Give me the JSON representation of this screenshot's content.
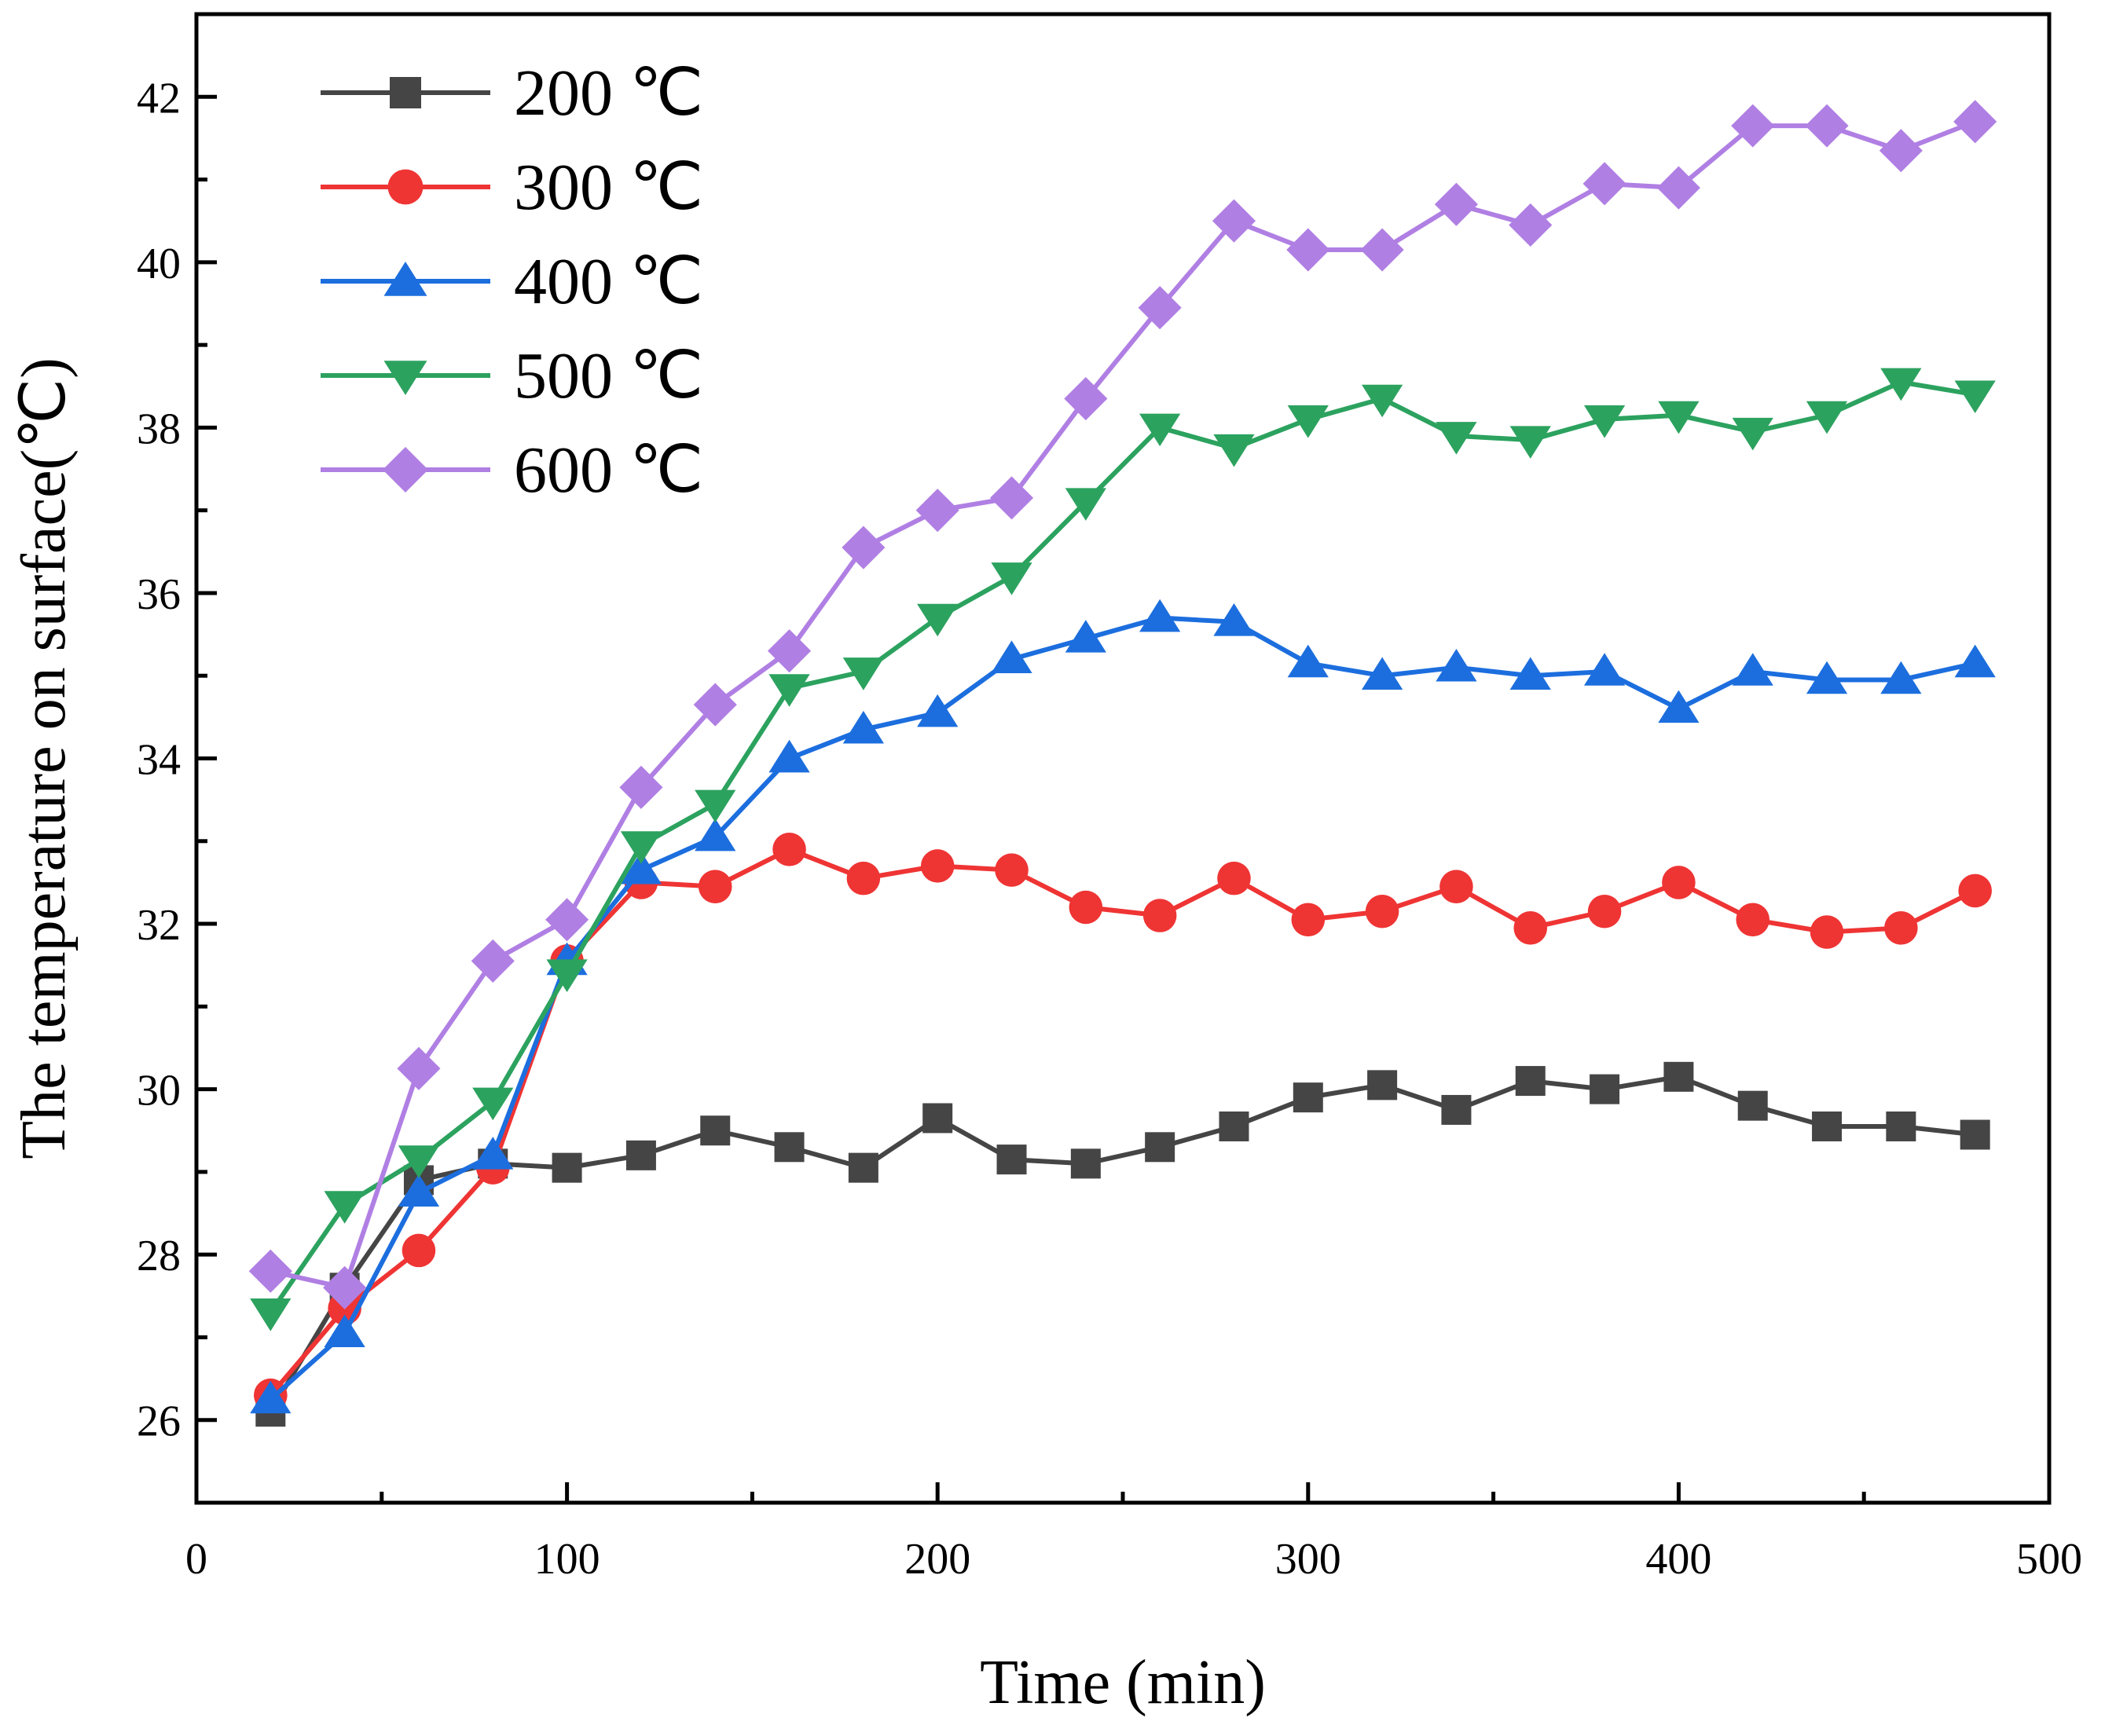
{
  "chart_data": {
    "type": "line",
    "title": "",
    "xlabel": "Time (min)",
    "ylabel": "The temperature on surface(℃)",
    "xlim": [
      0,
      500
    ],
    "ylim": [
      25,
      43
    ],
    "xticks": [
      0,
      100,
      200,
      300,
      400,
      500
    ],
    "yticks": [
      26,
      28,
      30,
      32,
      34,
      36,
      38,
      40,
      42
    ],
    "grid": false,
    "legend": "top-left",
    "x": [
      20,
      40,
      60,
      80,
      100,
      120,
      140,
      160,
      180,
      200,
      220,
      240,
      260,
      280,
      300,
      320,
      340,
      360,
      380,
      400,
      420,
      440,
      460,
      480
    ],
    "series": [
      {
        "name": "200 ℃",
        "color": "#454545",
        "marker": "square",
        "values": [
          26.1,
          27.6,
          28.9,
          29.1,
          29.05,
          29.2,
          29.5,
          29.3,
          29.05,
          29.65,
          29.15,
          29.1,
          29.3,
          29.55,
          29.9,
          30.05,
          29.75,
          30.1,
          30.0,
          30.15,
          29.8,
          29.55,
          29.55,
          29.45
        ]
      },
      {
        "name": "300 ℃",
        "color": "#ef3434",
        "marker": "circle",
        "values": [
          26.3,
          27.35,
          28.05,
          29.05,
          31.55,
          32.5,
          32.45,
          32.9,
          32.55,
          32.7,
          32.65,
          32.2,
          32.1,
          32.55,
          32.05,
          32.15,
          32.45,
          31.95,
          32.15,
          32.5,
          32.05,
          31.9,
          31.95,
          32.4
        ]
      },
      {
        "name": "400 ℃",
        "color": "#1c6ede",
        "marker": "triangle-up",
        "values": [
          26.25,
          27.05,
          28.75,
          29.2,
          31.55,
          32.65,
          33.05,
          34.0,
          34.35,
          34.55,
          35.2,
          35.45,
          35.7,
          35.65,
          35.15,
          35.0,
          35.1,
          35.0,
          35.05,
          34.6,
          35.05,
          34.95,
          34.95,
          35.15
        ]
      },
      {
        "name": "500 ℃",
        "color": "#2ca25f",
        "marker": "triangle-down",
        "values": [
          27.3,
          28.6,
          29.15,
          29.85,
          31.4,
          32.95,
          33.45,
          34.85,
          35.05,
          35.7,
          36.2,
          37.1,
          38.0,
          37.75,
          38.1,
          38.35,
          37.9,
          37.85,
          38.1,
          38.15,
          37.95,
          38.15,
          38.55,
          38.4
        ]
      },
      {
        "name": "600 ℃",
        "color": "#b07fe3",
        "marker": "diamond",
        "values": [
          27.8,
          27.6,
          30.25,
          31.55,
          32.05,
          33.65,
          34.65,
          35.3,
          36.55,
          37.0,
          37.15,
          38.35,
          39.45,
          40.5,
          40.15,
          40.15,
          40.7,
          40.45,
          40.95,
          40.9,
          41.65,
          41.65,
          41.35,
          41.7
        ]
      }
    ]
  }
}
